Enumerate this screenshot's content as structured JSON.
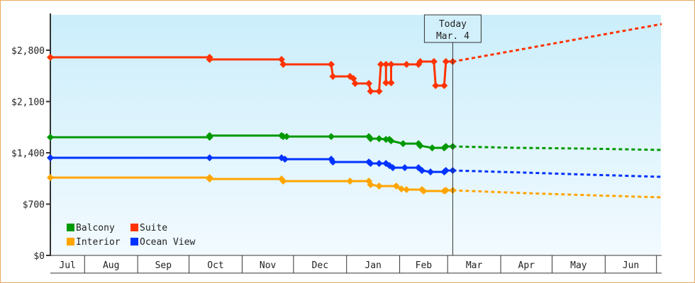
{
  "chart_data": {
    "type": "line",
    "title": "",
    "xlabel": "",
    "ylabel": "",
    "ylim": [
      0,
      3200
    ],
    "yticks": [
      {
        "value": 0,
        "label": "$0"
      },
      {
        "value": 700,
        "label": "$700"
      },
      {
        "value": 1400,
        "label": "$1,400"
      },
      {
        "value": 2100,
        "label": "$2,100"
      },
      {
        "value": 2800,
        "label": "$2,800"
      }
    ],
    "xlim": [
      "2012-07-12",
      "2013-07-04"
    ],
    "xticks": [
      {
        "label": "Jul",
        "start": "2012-07-12",
        "end": "2012-08-01"
      },
      {
        "label": "Aug",
        "start": "2012-08-01",
        "end": "2012-09-01"
      },
      {
        "label": "Sep",
        "start": "2012-09-01",
        "end": "2012-10-01"
      },
      {
        "label": "Oct",
        "start": "2012-10-01",
        "end": "2012-11-01"
      },
      {
        "label": "Nov",
        "start": "2012-11-01",
        "end": "2012-12-01"
      },
      {
        "label": "Dec",
        "start": "2012-12-01",
        "end": "2013-01-01"
      },
      {
        "label": "Jan",
        "start": "2013-01-01",
        "end": "2013-02-01"
      },
      {
        "label": "Feb",
        "start": "2013-02-01",
        "end": "2013-03-01"
      },
      {
        "label": "Mar",
        "start": "2013-03-01",
        "end": "2013-04-01"
      },
      {
        "label": "Apr",
        "start": "2013-04-01",
        "end": "2013-05-01"
      },
      {
        "label": "May",
        "start": "2013-05-01",
        "end": "2013-06-01"
      },
      {
        "label": "Jun",
        "start": "2013-06-01",
        "end": "2013-07-01"
      },
      {
        "label": "",
        "start": "2013-07-01",
        "end": "2013-07-04"
      }
    ],
    "grid": false,
    "background": {
      "top": "#cbeefb",
      "bottom": "#f2faff"
    },
    "today": {
      "date": "2013-03-04",
      "line1": "Today",
      "line2": "Mar. 4"
    },
    "legend": {
      "placement": "bottom-left"
    },
    "series": [
      {
        "name": "Balcony",
        "color": "#009900",
        "values": [
          [
            "2012-07-12",
            1612
          ],
          [
            "2012-10-13",
            1612
          ],
          [
            "2012-10-13",
            1635
          ],
          [
            "2012-11-24",
            1635
          ],
          [
            "2012-11-25",
            1622
          ],
          [
            "2012-11-27",
            1622
          ],
          [
            "2012-12-23",
            1622
          ],
          [
            "2013-01-14",
            1622
          ],
          [
            "2013-01-15",
            1593
          ],
          [
            "2013-01-20",
            1593
          ],
          [
            "2013-01-24",
            1583
          ],
          [
            "2013-01-26",
            1583
          ],
          [
            "2013-01-27",
            1564
          ],
          [
            "2013-02-03",
            1525
          ],
          [
            "2013-02-12",
            1525
          ],
          [
            "2013-02-13",
            1497
          ],
          [
            "2013-02-20",
            1468
          ],
          [
            "2013-02-27",
            1468
          ],
          [
            "2013-02-28",
            1487
          ],
          [
            "2013-03-04",
            1487
          ]
        ],
        "forecast": [
          [
            "2013-03-04",
            1487
          ],
          [
            "2013-04-10",
            1468
          ],
          [
            "2013-05-20",
            1458
          ],
          [
            "2013-07-04",
            1439
          ]
        ]
      },
      {
        "name": "Suite",
        "color": "#ff3300",
        "values": [
          [
            "2012-07-12",
            2703
          ],
          [
            "2012-10-13",
            2703
          ],
          [
            "2012-10-13",
            2675
          ],
          [
            "2012-11-24",
            2675
          ],
          [
            "2012-11-25",
            2607
          ],
          [
            "2012-12-23",
            2607
          ],
          [
            "2012-12-24",
            2443
          ],
          [
            "2013-01-03",
            2443
          ],
          [
            "2013-01-05",
            2414
          ],
          [
            "2013-01-06",
            2346
          ],
          [
            "2013-01-14",
            2346
          ],
          [
            "2013-01-15",
            2240
          ],
          [
            "2013-01-20",
            2240
          ],
          [
            "2013-01-21",
            2607
          ],
          [
            "2013-01-24",
            2607
          ],
          [
            "2013-01-24",
            2356
          ],
          [
            "2013-01-27",
            2356
          ],
          [
            "2013-01-27",
            2607
          ],
          [
            "2013-02-05",
            2607
          ],
          [
            "2013-02-12",
            2607
          ],
          [
            "2013-02-13",
            2645
          ],
          [
            "2013-02-21",
            2645
          ],
          [
            "2013-02-22",
            2317
          ],
          [
            "2013-02-27",
            2317
          ],
          [
            "2013-02-28",
            2645
          ],
          [
            "2013-03-04",
            2645
          ]
        ],
        "forecast": [
          [
            "2013-03-04",
            2645
          ],
          [
            "2013-04-15",
            2820
          ],
          [
            "2013-05-25",
            2990
          ],
          [
            "2013-07-04",
            3157
          ]
        ]
      },
      {
        "name": "Interior",
        "color": "#ffa500",
        "values": [
          [
            "2012-07-12",
            1062
          ],
          [
            "2012-10-13",
            1062
          ],
          [
            "2012-10-13",
            1043
          ],
          [
            "2012-11-24",
            1043
          ],
          [
            "2012-11-25",
            1014
          ],
          [
            "2013-01-03",
            1014
          ],
          [
            "2013-01-14",
            1014
          ],
          [
            "2013-01-15",
            965
          ],
          [
            "2013-01-20",
            946
          ],
          [
            "2013-01-30",
            946
          ],
          [
            "2013-02-02",
            908
          ],
          [
            "2013-02-05",
            898
          ],
          [
            "2013-02-14",
            898
          ],
          [
            "2013-02-15",
            879
          ],
          [
            "2013-02-27",
            879
          ],
          [
            "2013-02-28",
            888
          ],
          [
            "2013-03-04",
            888
          ]
        ],
        "forecast": [
          [
            "2013-03-04",
            888
          ],
          [
            "2013-04-15",
            850
          ],
          [
            "2013-05-25",
            820
          ],
          [
            "2013-07-04",
            792
          ]
        ]
      },
      {
        "name": "Ocean View",
        "color": "#0033ff",
        "values": [
          [
            "2012-07-12",
            1332
          ],
          [
            "2012-10-13",
            1332
          ],
          [
            "2012-11-24",
            1332
          ],
          [
            "2012-11-26",
            1313
          ],
          [
            "2012-12-23",
            1313
          ],
          [
            "2012-12-24",
            1274
          ],
          [
            "2013-01-14",
            1274
          ],
          [
            "2013-01-15",
            1255
          ],
          [
            "2013-01-20",
            1255
          ],
          [
            "2013-01-24",
            1255
          ],
          [
            "2013-01-26",
            1226
          ],
          [
            "2013-01-28",
            1197
          ],
          [
            "2013-02-04",
            1197
          ],
          [
            "2013-02-12",
            1197
          ],
          [
            "2013-02-14",
            1159
          ],
          [
            "2013-02-19",
            1139
          ],
          [
            "2013-02-27",
            1139
          ],
          [
            "2013-02-28",
            1159
          ],
          [
            "2013-03-04",
            1159
          ]
        ],
        "forecast": [
          [
            "2013-03-04",
            1159
          ],
          [
            "2013-04-15",
            1130
          ],
          [
            "2013-05-25",
            1100
          ],
          [
            "2013-07-04",
            1072
          ]
        ]
      }
    ]
  }
}
